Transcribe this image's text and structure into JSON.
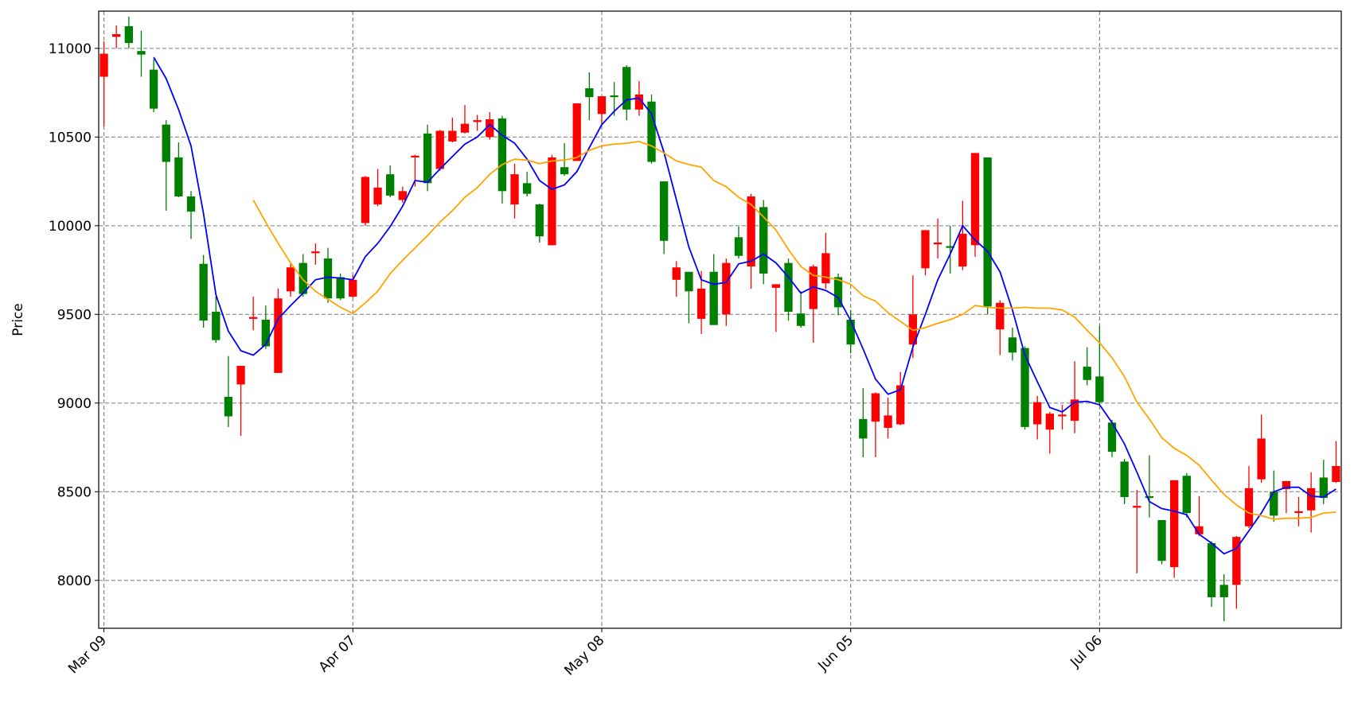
{
  "chart_data": {
    "type": "candlestick",
    "y_label": "Price",
    "categories": [
      "Mar 09",
      null,
      null,
      null,
      null,
      null,
      null,
      null,
      null,
      null,
      null,
      null,
      null,
      null,
      null,
      null,
      null,
      null,
      null,
      null,
      "Apr 07",
      null,
      null,
      null,
      null,
      null,
      null,
      null,
      null,
      null,
      null,
      null,
      null,
      null,
      null,
      null,
      null,
      null,
      null,
      null,
      "May 08",
      null,
      null,
      null,
      null,
      null,
      null,
      null,
      null,
      null,
      null,
      null,
      null,
      null,
      null,
      null,
      null,
      null,
      null,
      null,
      "Jun 05",
      null,
      null,
      null,
      null,
      null,
      null,
      null,
      null,
      null,
      null,
      null,
      null,
      null,
      null,
      null,
      null,
      null,
      null,
      null,
      "Jul 06",
      null,
      null,
      null,
      null,
      null,
      null,
      null,
      null,
      null,
      null,
      null,
      null,
      null,
      null,
      null,
      null,
      null,
      null,
      null
    ],
    "open": [
      10840,
      11065,
      11125,
      10985,
      10880,
      10570,
      10385,
      10165,
      9785,
      9515,
      9035,
      9105,
      9475,
      9470,
      9170,
      9630,
      9790,
      9845,
      9815,
      9710,
      9600,
      10015,
      10120,
      10290,
      10145,
      10385,
      10520,
      10320,
      10475,
      10525,
      10585,
      10500,
      10605,
      10120,
      10240,
      10120,
      9890,
      10330,
      10365,
      10775,
      10630,
      10735,
      10895,
      10655,
      10700,
      10250,
      9695,
      9740,
      9475,
      9740,
      9500,
      9935,
      9770,
      10105,
      9650,
      9790,
      9505,
      9530,
      9675,
      9710,
      9470,
      8910,
      8895,
      8860,
      8880,
      9330,
      9760,
      9895,
      9885,
      9770,
      9890,
      10385,
      9415,
      9370,
      9310,
      8880,
      8850,
      8925,
      8900,
      9205,
      9150,
      8890,
      8670,
      8410,
      8475,
      8340,
      8075,
      8590,
      8260,
      8210,
      7975,
      7975,
      8305,
      8570,
      8500,
      8515,
      8380,
      8395,
      8580,
      8555
    ],
    "high": [
      11040,
      11130,
      11180,
      11100,
      10940,
      10595,
      10470,
      10195,
      9835,
      9600,
      9265,
      9210,
      9600,
      9550,
      9645,
      9790,
      9840,
      9900,
      9875,
      9730,
      9720,
      10280,
      10320,
      10340,
      10220,
      10400,
      10570,
      10540,
      10610,
      10680,
      10625,
      10640,
      10620,
      10350,
      10305,
      10125,
      10400,
      10465,
      10690,
      10865,
      10730,
      10810,
      10905,
      10815,
      10740,
      10250,
      9800,
      9740,
      9745,
      9840,
      9815,
      9995,
      10180,
      10145,
      9670,
      9815,
      9630,
      9780,
      9960,
      9730,
      9525,
      9085,
      9060,
      9030,
      9175,
      9720,
      9975,
      10040,
      10000,
      10140,
      10410,
      10385,
      9580,
      9425,
      9320,
      9040,
      8950,
      8990,
      9235,
      9315,
      9435,
      8905,
      8685,
      8510,
      8705,
      8340,
      8565,
      8605,
      8475,
      8220,
      8035,
      8250,
      8645,
      8935,
      8620,
      8560,
      8470,
      8610,
      8680,
      8785
    ],
    "low": [
      10560,
      11000,
      11000,
      10840,
      10640,
      10085,
      10160,
      9925,
      9425,
      9340,
      8865,
      8815,
      9410,
      9305,
      9170,
      9600,
      9600,
      9780,
      9565,
      9580,
      9595,
      10000,
      10110,
      10160,
      10130,
      10220,
      10195,
      10310,
      10470,
      10520,
      10535,
      10485,
      10125,
      10040,
      10165,
      9905,
      9890,
      10280,
      10365,
      10595,
      10565,
      10620,
      10595,
      10620,
      10350,
      9840,
      9600,
      9450,
      9390,
      9440,
      9435,
      9815,
      9645,
      9670,
      9400,
      9465,
      9425,
      9340,
      9645,
      9495,
      9280,
      8695,
      8695,
      8800,
      8875,
      9255,
      9720,
      9815,
      9730,
      9750,
      9825,
      9500,
      9270,
      9240,
      8850,
      8795,
      8715,
      8850,
      8830,
      9100,
      8990,
      8695,
      8430,
      8040,
      8355,
      8090,
      8015,
      8355,
      8250,
      7850,
      7770,
      7840,
      8295,
      8550,
      8330,
      8380,
      8305,
      8270,
      8430,
      8550
    ],
    "close": [
      10970,
      11080,
      11030,
      10965,
      10660,
      10360,
      10165,
      10080,
      9465,
      9355,
      8925,
      9210,
      9485,
      9320,
      9590,
      9765,
      9615,
      9855,
      9590,
      9590,
      9695,
      10275,
      10215,
      10170,
      10195,
      10395,
      10240,
      10535,
      10535,
      10575,
      10595,
      10600,
      10195,
      10290,
      10180,
      9940,
      10385,
      10290,
      10690,
      10725,
      10730,
      10725,
      10655,
      10740,
      10360,
      9915,
      9765,
      9630,
      9645,
      9440,
      9790,
      9830,
      10165,
      9730,
      9670,
      9515,
      9435,
      9770,
      9845,
      9540,
      9330,
      8800,
      9055,
      8930,
      9100,
      9500,
      9975,
      9905,
      9875,
      9955,
      10410,
      9545,
      9565,
      9285,
      8865,
      9005,
      8940,
      8935,
      9020,
      9130,
      9005,
      8725,
      8470,
      8420,
      8465,
      8110,
      8565,
      8380,
      8305,
      7905,
      7905,
      8245,
      8520,
      8800,
      8365,
      8560,
      8390,
      8520,
      8465,
      8645
    ],
    "up_color": "red",
    "down_color": "green",
    "lines": [
      {
        "color": "blue",
        "values": [
          null,
          null,
          null,
          null,
          10950,
          10830,
          10655,
          10450,
          10070,
          9610,
          9405,
          9295,
          9270,
          9330,
          9475,
          9550,
          9620,
          9695,
          9710,
          9705,
          9695,
          9825,
          9900,
          9995,
          10110,
          10255,
          10245,
          10320,
          10390,
          10460,
          10500,
          10570,
          10510,
          10465,
          10375,
          10255,
          10205,
          10230,
          10305,
          10440,
          10570,
          10645,
          10710,
          10720,
          10630,
          10415,
          10145,
          9880,
          9695,
          9670,
          9680,
          9785,
          9800,
          9840,
          9790,
          9710,
          9620,
          9655,
          9635,
          9595,
          9465,
          9305,
          9135,
          9050,
          9075,
          9315,
          9500,
          9695,
          9840,
          10000,
          9920,
          9855,
          9740,
          9525,
          9270,
          9120,
          8975,
          8950,
          9005,
          9010,
          8990,
          8890,
          8770,
          8610,
          8445,
          8405,
          8390,
          8370,
          8260,
          8210,
          8150,
          8180,
          8280,
          8380,
          8500,
          8525,
          8525,
          8475,
          8470,
          8515
        ]
      },
      {
        "color": "orange",
        "values": [
          null,
          null,
          null,
          null,
          null,
          null,
          null,
          null,
          null,
          null,
          null,
          null,
          10145,
          10020,
          9900,
          9790,
          9695,
          9630,
          9585,
          9540,
          9505,
          9565,
          9630,
          9730,
          9805,
          9875,
          9945,
          10020,
          10085,
          10160,
          10215,
          10290,
          10345,
          10375,
          10370,
          10350,
          10365,
          10370,
          10385,
          10425,
          10450,
          10460,
          10465,
          10475,
          10450,
          10410,
          10365,
          10345,
          10330,
          10255,
          10220,
          10160,
          10120,
          10050,
          9975,
          9865,
          9770,
          9720,
          9710,
          9695,
          9670,
          9605,
          9575,
          9510,
          9460,
          9410,
          9425,
          9450,
          9470,
          9500,
          9550,
          9540,
          9535,
          9535,
          9540,
          9535,
          9535,
          9525,
          9485,
          9410,
          9340,
          9255,
          9150,
          9005,
          8910,
          8805,
          8745,
          8705,
          8650,
          8565,
          8485,
          8425,
          8380,
          8365,
          8345,
          8350,
          8350,
          8355,
          8380,
          8385
        ]
      }
    ],
    "ylim": [
      7730,
      11210
    ],
    "yticks": [
      8000,
      8500,
      9000,
      9500,
      10000,
      10500,
      11000
    ],
    "grid": true
  }
}
